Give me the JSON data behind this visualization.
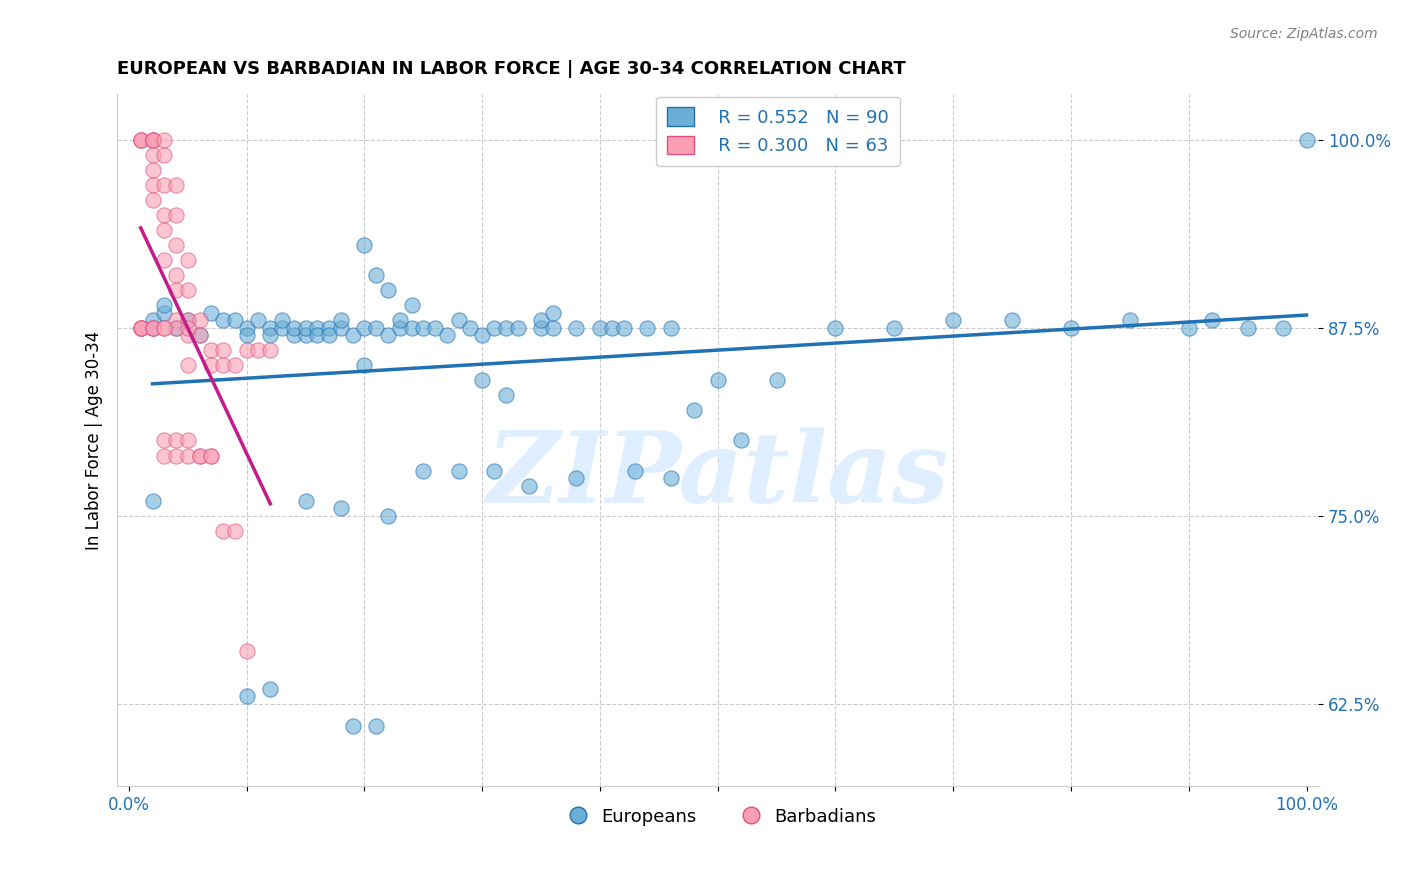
{
  "title": "EUROPEAN VS BARBADIAN IN LABOR FORCE | AGE 30-34 CORRELATION CHART",
  "source": "Source: ZipAtlas.com",
  "xlabel": "",
  "ylabel": "In Labor Force | Age 30-34",
  "xlim": [
    0.0,
    1.0
  ],
  "ylim": [
    0.57,
    1.03
  ],
  "yticks": [
    0.625,
    0.75,
    0.875,
    1.0
  ],
  "ytick_labels": [
    "62.5%",
    "75.0%",
    "87.5%",
    "100.0%"
  ],
  "xticks": [
    0.0,
    0.1,
    0.2,
    0.3,
    0.4,
    0.5,
    0.6,
    0.7,
    0.8,
    0.9,
    1.0
  ],
  "xtick_labels": [
    "0.0%",
    "",
    "",
    "",
    "",
    "",
    "",
    "",
    "",
    "",
    "100.0%"
  ],
  "blue_R": 0.552,
  "blue_N": 90,
  "pink_R": 0.3,
  "pink_N": 63,
  "blue_color": "#6baed6",
  "pink_color": "#fa9fb5",
  "blue_line_color": "#2171b5",
  "pink_line_color": "#c51b8a",
  "legend_label_blue": "Europeans",
  "legend_label_pink": "Barbadians",
  "watermark": "ZIPatlas",
  "blue_points_x": [
    0.02,
    0.02,
    0.03,
    0.03,
    0.04,
    0.05,
    0.06,
    0.07,
    0.08,
    0.09,
    0.1,
    0.1,
    0.11,
    0.12,
    0.12,
    0.13,
    0.13,
    0.14,
    0.14,
    0.15,
    0.15,
    0.16,
    0.16,
    0.17,
    0.17,
    0.18,
    0.18,
    0.19,
    0.2,
    0.21,
    0.22,
    0.23,
    0.24,
    0.25,
    0.26,
    0.27,
    0.28,
    0.29,
    0.3,
    0.31,
    0.32,
    0.33,
    0.35,
    0.36,
    0.38,
    0.4,
    0.41,
    0.42,
    0.44,
    0.46,
    0.2,
    0.21,
    0.22,
    0.23,
    0.24,
    0.35,
    0.36,
    0.3,
    0.32,
    0.2,
    0.5,
    0.48,
    0.55,
    0.52,
    0.6,
    0.65,
    0.7,
    0.75,
    0.8,
    0.85,
    0.9,
    0.92,
    0.95,
    0.98,
    1.0,
    0.02,
    0.15,
    0.22,
    0.18,
    0.25,
    0.28,
    0.31,
    0.34,
    0.38,
    0.43,
    0.46,
    0.1,
    0.12,
    0.19,
    0.21
  ],
  "blue_points_y": [
    0.875,
    0.88,
    0.885,
    0.89,
    0.875,
    0.88,
    0.87,
    0.885,
    0.88,
    0.88,
    0.875,
    0.87,
    0.88,
    0.875,
    0.87,
    0.875,
    0.88,
    0.87,
    0.875,
    0.87,
    0.875,
    0.875,
    0.87,
    0.875,
    0.87,
    0.875,
    0.88,
    0.87,
    0.875,
    0.875,
    0.87,
    0.875,
    0.875,
    0.875,
    0.875,
    0.87,
    0.88,
    0.875,
    0.87,
    0.875,
    0.875,
    0.875,
    0.875,
    0.875,
    0.875,
    0.875,
    0.875,
    0.875,
    0.875,
    0.875,
    0.93,
    0.91,
    0.9,
    0.88,
    0.89,
    0.88,
    0.885,
    0.84,
    0.83,
    0.85,
    0.84,
    0.82,
    0.84,
    0.8,
    0.875,
    0.875,
    0.88,
    0.88,
    0.875,
    0.88,
    0.875,
    0.88,
    0.875,
    0.875,
    1.0,
    0.76,
    0.76,
    0.75,
    0.755,
    0.78,
    0.78,
    0.78,
    0.77,
    0.775,
    0.78,
    0.775,
    0.63,
    0.635,
    0.61,
    0.61
  ],
  "pink_points_x": [
    0.01,
    0.01,
    0.01,
    0.02,
    0.02,
    0.02,
    0.02,
    0.02,
    0.02,
    0.02,
    0.02,
    0.03,
    0.03,
    0.03,
    0.03,
    0.03,
    0.03,
    0.04,
    0.04,
    0.04,
    0.04,
    0.04,
    0.04,
    0.05,
    0.05,
    0.05,
    0.05,
    0.05,
    0.06,
    0.06,
    0.07,
    0.07,
    0.08,
    0.08,
    0.09,
    0.1,
    0.11,
    0.12,
    0.04,
    0.05,
    0.01,
    0.01,
    0.01,
    0.01,
    0.01,
    0.02,
    0.02,
    0.02,
    0.03,
    0.03,
    0.03,
    0.03,
    0.04,
    0.04,
    0.05,
    0.05,
    0.06,
    0.06,
    0.07,
    0.07,
    0.08,
    0.09,
    0.1
  ],
  "pink_points_y": [
    1.0,
    1.0,
    1.0,
    1.0,
    1.0,
    1.0,
    1.0,
    0.99,
    0.98,
    0.97,
    0.96,
    1.0,
    0.99,
    0.97,
    0.95,
    0.94,
    0.92,
    0.97,
    0.95,
    0.93,
    0.91,
    0.9,
    0.88,
    0.92,
    0.9,
    0.88,
    0.87,
    0.85,
    0.88,
    0.87,
    0.86,
    0.85,
    0.86,
    0.85,
    0.85,
    0.86,
    0.86,
    0.86,
    0.875,
    0.875,
    0.875,
    0.875,
    0.875,
    0.875,
    0.875,
    0.875,
    0.875,
    0.875,
    0.875,
    0.875,
    0.8,
    0.79,
    0.8,
    0.79,
    0.8,
    0.79,
    0.79,
    0.79,
    0.79,
    0.79,
    0.74,
    0.74,
    0.66
  ]
}
